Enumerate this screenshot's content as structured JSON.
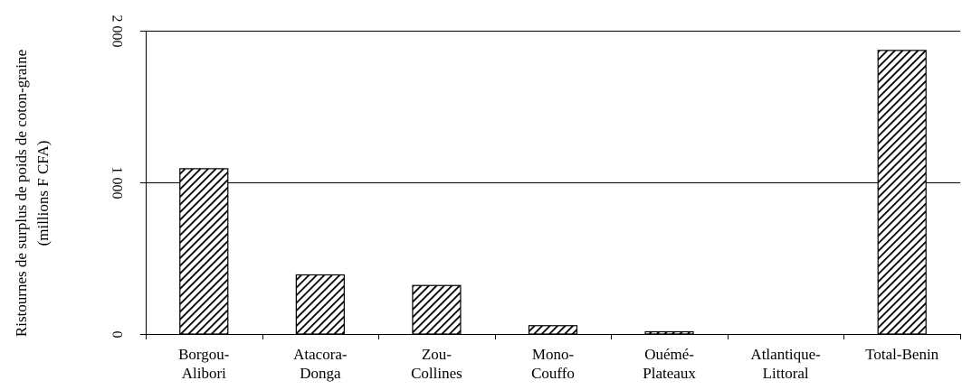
{
  "chart_data": {
    "type": "bar",
    "categories": [
      [
        "Borgou-",
        "Alibori"
      ],
      [
        "Atacora-",
        "Donga"
      ],
      [
        "Zou-",
        "Collines"
      ],
      [
        "Mono-",
        "Couffo"
      ],
      [
        "Ouémé-",
        "Plateaux"
      ],
      [
        "Atlantique-",
        "Littoral"
      ],
      [
        "Total-Benin"
      ]
    ],
    "values": [
      1090,
      390,
      320,
      55,
      15,
      0,
      1870
    ],
    "ylabel": [
      "Ristournes de surplus de poids de coton-graine",
      "(millions F CFA)"
    ],
    "yticks": [
      {
        "value": 0,
        "label": "0"
      },
      {
        "value": 1000,
        "label": "1 000"
      },
      {
        "value": 2000,
        "label": "2 000"
      }
    ],
    "ylim": [
      0,
      2000
    ],
    "grid": true,
    "bar_fill": "hatched",
    "colors": {
      "bar_stroke": "#000000",
      "hatch": "#000000",
      "background": "#ffffff"
    }
  }
}
